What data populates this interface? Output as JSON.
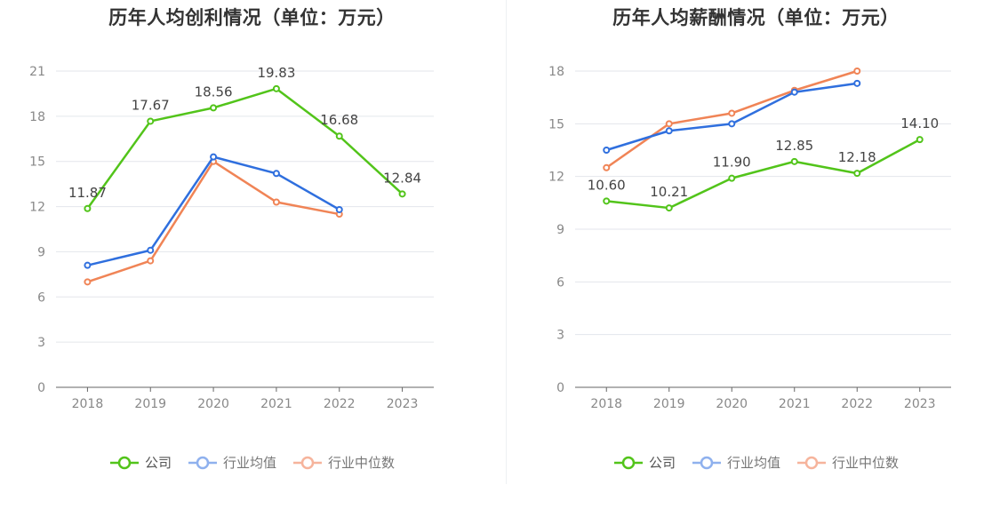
{
  "colors": {
    "company": "#52c41a",
    "industry_avg": "#2f6fde",
    "industry_median": "#f08456",
    "legend_avg": "#8fb1ee",
    "legend_median": "#f6b49c",
    "grid": "#e3e6eb",
    "axis": "#666666",
    "tick": "#888888"
  },
  "legend": {
    "company": "公司",
    "industry_avg": "行业均值",
    "industry_median": "行业中位数"
  },
  "chart_data": [
    {
      "type": "line",
      "title": "历年人均创利情况（单位：万元）",
      "categories": [
        "2018",
        "2019",
        "2020",
        "2021",
        "2022",
        "2023"
      ],
      "ylim": [
        0,
        21
      ],
      "yticks": [
        0,
        3,
        6,
        9,
        12,
        15,
        18,
        21
      ],
      "grid": true,
      "legend_position": "bottom",
      "series": [
        {
          "name": "公司",
          "values": [
            11.87,
            17.67,
            18.56,
            19.83,
            16.68,
            12.84
          ],
          "labels": [
            "11.87",
            "17.67",
            "18.56",
            "19.83",
            "16.68",
            "12.84"
          ]
        },
        {
          "name": "行业均值",
          "values": [
            8.1,
            9.1,
            15.3,
            14.2,
            11.8,
            null
          ]
        },
        {
          "name": "行业中位数",
          "values": [
            7.0,
            8.4,
            15.0,
            12.3,
            11.5,
            null
          ]
        }
      ]
    },
    {
      "type": "line",
      "title": "历年人均薪酬情况（单位：万元）",
      "categories": [
        "2018",
        "2019",
        "2020",
        "2021",
        "2022",
        "2023"
      ],
      "ylim": [
        0,
        18
      ],
      "yticks": [
        0,
        3,
        6,
        9,
        12,
        15,
        18
      ],
      "grid": true,
      "legend_position": "bottom",
      "series": [
        {
          "name": "公司",
          "values": [
            10.6,
            10.21,
            11.9,
            12.85,
            12.18,
            14.1
          ],
          "labels": [
            "10.60",
            "10.21",
            "11.90",
            "12.85",
            "12.18",
            "14.10"
          ]
        },
        {
          "name": "行业均值",
          "values": [
            13.5,
            14.6,
            15.0,
            16.8,
            17.3,
            null
          ]
        },
        {
          "name": "行业中位数",
          "values": [
            12.5,
            15.0,
            15.6,
            16.9,
            18.0,
            null
          ]
        }
      ]
    }
  ]
}
